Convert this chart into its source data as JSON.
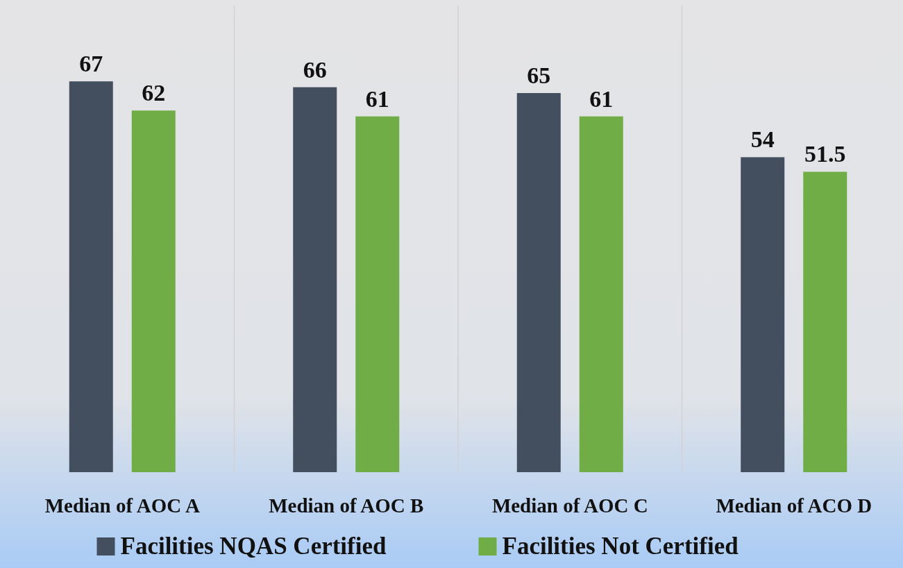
{
  "chart_data": {
    "type": "bar",
    "categories": [
      "Median of AOC A",
      "Median of AOC B",
      "Median of AOC C",
      "Median of ACO D"
    ],
    "series": [
      {
        "name": "Facilities NQAS Certified",
        "color": "#434f5e",
        "values": [
          67,
          66,
          65,
          54
        ]
      },
      {
        "name": "Facilities Not Certified",
        "color": "#70ad47",
        "values": [
          62,
          61,
          61,
          51.5
        ]
      }
    ],
    "ylim": [
      0,
      80
    ],
    "data_labels": true,
    "grid": "x",
    "legend": "bottom"
  }
}
